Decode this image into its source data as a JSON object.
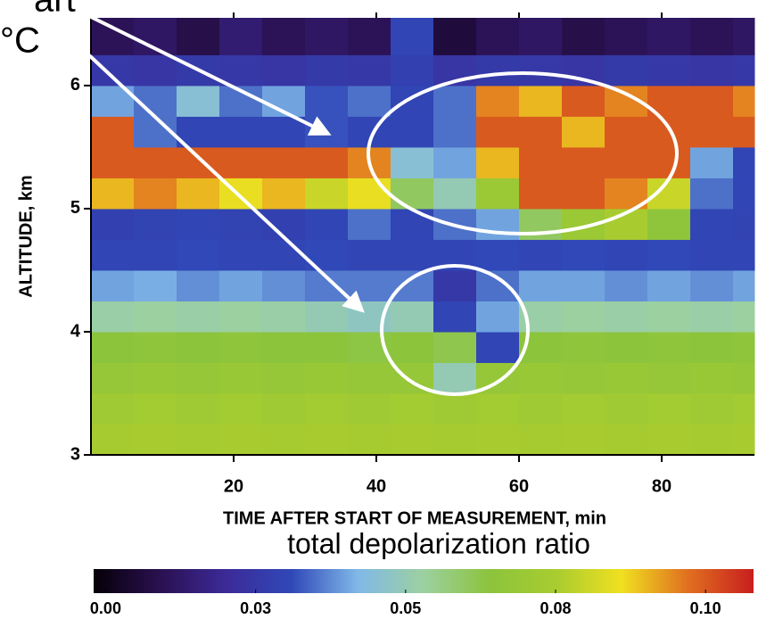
{
  "chart_data": {
    "type": "heatmap",
    "annotations": [
      "art",
      "°C"
    ],
    "xlabel": "TIME AFTER START OF MEASUREMENT, min",
    "ylabel": "ALTITUDE, km",
    "colorbar_label": "total depolarization ratio",
    "xlim": [
      0,
      93
    ],
    "ylim": [
      3,
      6.55
    ],
    "xticks": [
      20,
      40,
      60,
      80
    ],
    "yticks": [
      3,
      4,
      5,
      6
    ],
    "clim": [
      -0.002,
      0.108
    ],
    "cticks": [
      {
        "value": 0,
        "label": "0.00"
      },
      {
        "value": 0.025,
        "label": "0.03"
      },
      {
        "value": 0.05,
        "label": "0.05"
      },
      {
        "value": 0.075,
        "label": "0.08"
      },
      {
        "value": 0.1,
        "label": "0.10"
      }
    ],
    "colormap": [
      "#050008",
      "#2a1050",
      "#3c2a98",
      "#3048b8",
      "#80b8e8",
      "#9cd0a0",
      "#8cc43c",
      "#a8cc30",
      "#f0e020",
      "#e07020",
      "#c81e1e"
    ],
    "x_edges": [
      0,
      6,
      12,
      18,
      24,
      30,
      36,
      42,
      48,
      54,
      60,
      66,
      72,
      78,
      84,
      90,
      93
    ],
    "y_edges": [
      3,
      3.25,
      3.5,
      3.75,
      4,
      4.25,
      4.5,
      4.75,
      5,
      5.25,
      5.5,
      5.75,
      6,
      6.25,
      6.55
    ],
    "z": [
      [
        0.074,
        0.075,
        0.074,
        0.075,
        0.074,
        0.075,
        0.074,
        0.075,
        0.074,
        0.075,
        0.074,
        0.075,
        0.074,
        0.075,
        0.074,
        0.075
      ],
      [
        0.072,
        0.073,
        0.072,
        0.073,
        0.072,
        0.073,
        0.072,
        0.073,
        0.072,
        0.073,
        0.072,
        0.073,
        0.072,
        0.073,
        0.072,
        0.073
      ],
      [
        0.068,
        0.069,
        0.068,
        0.069,
        0.068,
        0.069,
        0.068,
        0.068,
        0.05,
        0.068,
        0.069,
        0.068,
        0.069,
        0.068,
        0.069,
        0.068
      ],
      [
        0.064,
        0.065,
        0.064,
        0.065,
        0.064,
        0.064,
        0.063,
        0.064,
        0.062,
        0.03,
        0.064,
        0.065,
        0.064,
        0.065,
        0.064,
        0.065
      ],
      [
        0.052,
        0.053,
        0.052,
        0.053,
        0.052,
        0.05,
        0.048,
        0.05,
        0.03,
        0.04,
        0.052,
        0.053,
        0.052,
        0.053,
        0.052,
        0.053
      ],
      [
        0.04,
        0.041,
        0.038,
        0.04,
        0.038,
        0.036,
        0.036,
        0.036,
        0.025,
        0.035,
        0.04,
        0.04,
        0.038,
        0.04,
        0.038,
        0.04
      ],
      [
        0.03,
        0.03,
        0.031,
        0.03,
        0.03,
        0.031,
        0.03,
        0.03,
        0.03,
        0.031,
        0.03,
        0.031,
        0.03,
        0.031,
        0.03,
        0.03
      ],
      [
        0.028,
        0.029,
        0.03,
        0.029,
        0.028,
        0.03,
        0.035,
        0.03,
        0.035,
        0.04,
        0.06,
        0.07,
        0.075,
        0.065,
        0.03,
        0.029
      ],
      [
        0.09,
        0.095,
        0.09,
        0.085,
        0.09,
        0.08,
        0.085,
        0.06,
        0.05,
        0.07,
        0.1,
        0.1,
        0.095,
        0.08,
        0.035,
        0.03
      ],
      [
        0.1,
        0.1,
        0.1,
        0.1,
        0.1,
        0.1,
        0.095,
        0.045,
        0.04,
        0.09,
        0.1,
        0.1,
        0.1,
        0.1,
        0.04,
        0.03
      ],
      [
        0.1,
        0.035,
        0.03,
        0.03,
        0.03,
        0.032,
        0.03,
        0.03,
        0.035,
        0.1,
        0.1,
        0.09,
        0.1,
        0.1,
        0.1,
        0.1
      ],
      [
        0.04,
        0.035,
        0.045,
        0.035,
        0.04,
        0.032,
        0.035,
        0.03,
        0.035,
        0.095,
        0.09,
        0.1,
        0.095,
        0.1,
        0.1,
        0.095
      ],
      [
        0.025,
        0.024,
        0.026,
        0.025,
        0.024,
        0.026,
        0.025,
        0.028,
        0.024,
        0.026,
        0.025,
        0.024,
        0.026,
        0.025,
        0.024,
        0.025
      ],
      [
        0.01,
        0.012,
        0.008,
        0.014,
        0.01,
        0.012,
        0.01,
        0.03,
        0.006,
        0.01,
        0.012,
        0.008,
        0.01,
        0.012,
        0.01,
        0.012
      ]
    ]
  }
}
